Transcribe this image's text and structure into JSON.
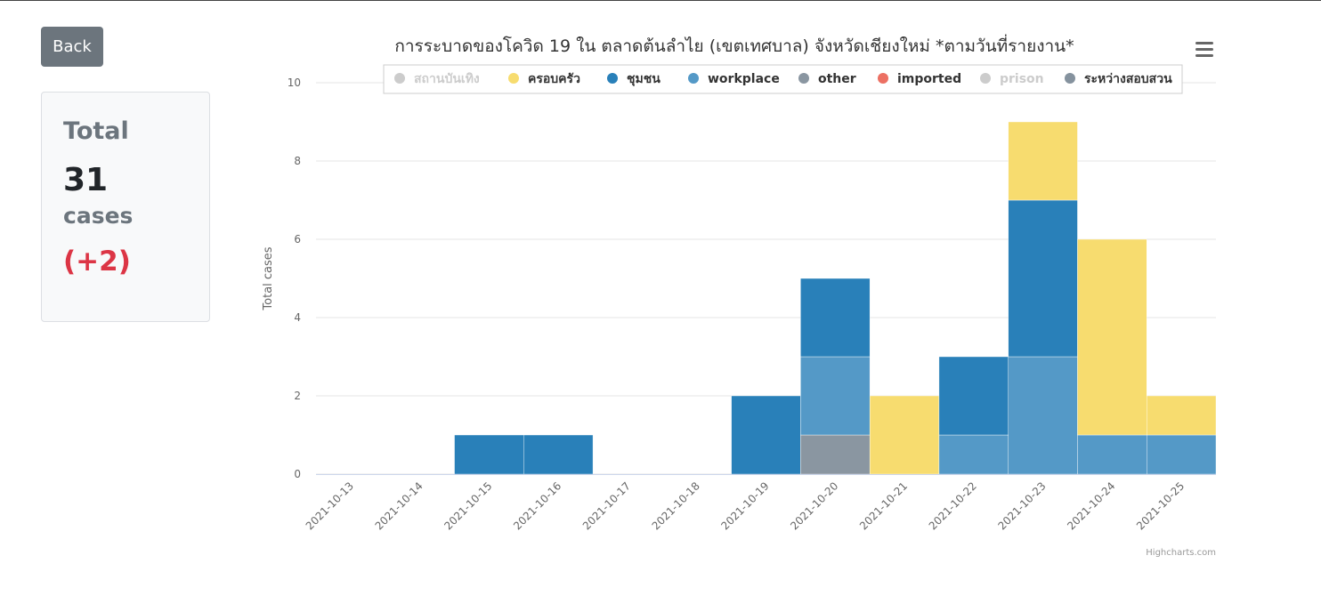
{
  "back_label": "Back",
  "summary": {
    "title": "Total",
    "count": "31",
    "unit": "cases",
    "delta": "(+2)"
  },
  "credits": "Highcharts.com",
  "menu_icon": "hamburger-menu-icon",
  "chart_data": {
    "type": "bar",
    "stacked": true,
    "title": "การระบาดของโควิด 19 ใน ตลาดต้นลำไย (เขตเทศบาล) จังหวัดเชียงใหม่ *ตามวันที่รายงาน*",
    "xlabel": "",
    "ylabel": "Total cases",
    "ylim": [
      0,
      10
    ],
    "yticks": [
      0,
      2,
      4,
      6,
      8,
      10
    ],
    "grid": true,
    "legend_position": "top",
    "categories": [
      "2021-10-13",
      "2021-10-14",
      "2021-10-15",
      "2021-10-16",
      "2021-10-17",
      "2021-10-18",
      "2021-10-19",
      "2021-10-20",
      "2021-10-21",
      "2021-10-22",
      "2021-10-23",
      "2021-10-24",
      "2021-10-25"
    ],
    "series": [
      {
        "name": "สถานบันเทิง",
        "color": "#cccccc",
        "hidden": true,
        "values": [
          0,
          0,
          0,
          0,
          0,
          0,
          0,
          0,
          0,
          0,
          0,
          0,
          0
        ]
      },
      {
        "name": "ครอบครัว",
        "color": "#f7dc6f",
        "hidden": false,
        "values": [
          0,
          0,
          0,
          0,
          0,
          0,
          0,
          0,
          2,
          0,
          2,
          5,
          1
        ]
      },
      {
        "name": "ชุมชน",
        "color": "#2980b9",
        "hidden": false,
        "values": [
          0,
          0,
          1,
          1,
          0,
          0,
          2,
          2,
          0,
          2,
          4,
          0,
          0
        ]
      },
      {
        "name": "workplace",
        "color": "#5499c7",
        "hidden": false,
        "values": [
          0,
          0,
          0,
          0,
          0,
          0,
          0,
          2,
          0,
          1,
          3,
          1,
          1
        ]
      },
      {
        "name": "other",
        "color": "#8a96a1",
        "hidden": false,
        "values": [
          0,
          0,
          0,
          0,
          0,
          0,
          0,
          1,
          0,
          0,
          0,
          0,
          0
        ]
      },
      {
        "name": "imported",
        "color": "#ec7063",
        "hidden": false,
        "values": [
          0,
          0,
          0,
          0,
          0,
          0,
          0,
          0,
          0,
          0,
          0,
          0,
          0
        ]
      },
      {
        "name": "prison",
        "color": "#cccccc",
        "hidden": true,
        "values": [
          0,
          0,
          0,
          0,
          0,
          0,
          0,
          0,
          0,
          0,
          0,
          0,
          0
        ]
      },
      {
        "name": "ระหว่างสอบสวน",
        "color": "#85929e",
        "hidden": false,
        "values": [
          0,
          0,
          0,
          0,
          0,
          0,
          0,
          0,
          0,
          0,
          0,
          0,
          0
        ]
      }
    ]
  }
}
